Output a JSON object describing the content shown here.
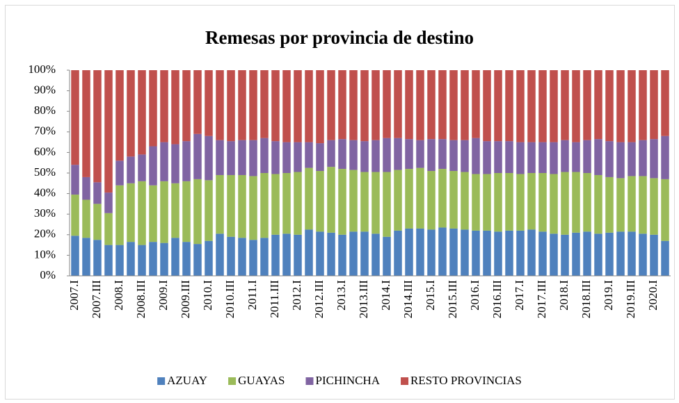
{
  "chart_data": {
    "type": "stacked_bar_100",
    "title": "Remesas por provincia de destino",
    "categories": [
      "2007.I",
      null,
      "2007.III",
      null,
      "2008.I",
      null,
      "2008.III",
      null,
      "2009.I",
      null,
      "2009.III",
      null,
      "2010.I",
      null,
      "2010.III",
      null,
      "2011.I",
      null,
      "2011.III",
      null,
      "2012.I",
      null,
      "2012.III",
      null,
      "2013.I",
      null,
      "2013.III",
      null,
      "2014.I",
      null,
      "2014.III",
      null,
      "2015.I",
      null,
      "2015.III",
      null,
      "2016.I",
      null,
      "2016.III",
      null,
      "2017.I",
      null,
      "2017.III",
      null,
      "2018.I",
      null,
      "2018.III",
      null,
      "2019.I",
      null,
      "2019.III",
      null,
      "2020.I",
      null
    ],
    "series": [
      {
        "name": "AZUAY",
        "color": "#4f81bd",
        "values": [
          19.5,
          18.5,
          17.5,
          15,
          15,
          16.5,
          15,
          16.5,
          16,
          18.5,
          16.5,
          15.5,
          17,
          20.5,
          19,
          18.5,
          17.5,
          18.5,
          20,
          20.5,
          20,
          22.5,
          21.5,
          21,
          20,
          21.5,
          21.5,
          20.5,
          19,
          22,
          23,
          23,
          22.5,
          23.5,
          23,
          22.5,
          22,
          22,
          21.5,
          22,
          22,
          22.5,
          21.5,
          20.5,
          20,
          21,
          21.5,
          20.5,
          21,
          21.5,
          21.5,
          20.5,
          20,
          17
        ]
      },
      {
        "name": "GUAYAS",
        "color": "#9bbb59",
        "values": [
          20,
          18.5,
          17.5,
          15.5,
          29,
          28.5,
          31,
          27.5,
          30,
          26.5,
          29.5,
          31.5,
          29.5,
          28.5,
          30,
          30.5,
          31,
          31.5,
          29.5,
          29.5,
          30.5,
          30,
          29.5,
          32,
          32,
          30,
          29,
          30,
          31.5,
          29.5,
          29,
          29.5,
          28.5,
          28.5,
          28,
          28,
          27.5,
          27.5,
          28.5,
          28,
          27.5,
          27.5,
          28.5,
          29,
          30.5,
          29.5,
          28.5,
          28.5,
          27,
          26,
          27,
          28,
          27.5,
          30
        ]
      },
      {
        "name": "PICHINCHA",
        "color": "#8064a2",
        "values": [
          14.5,
          11,
          10.5,
          10,
          12,
          13,
          13,
          19,
          19,
          19,
          19.5,
          22,
          21.5,
          17,
          16.5,
          17,
          17.5,
          17,
          16,
          15,
          14.5,
          12.5,
          13.5,
          13,
          14.5,
          14.5,
          15,
          15.5,
          16.5,
          15.5,
          14.5,
          13.5,
          15.5,
          14.5,
          15,
          15.5,
          17.5,
          16,
          15.5,
          15.5,
          15.5,
          15,
          15,
          15.5,
          15.5,
          14.5,
          16,
          17.5,
          17.5,
          17.5,
          16.5,
          17.5,
          19,
          21
        ]
      },
      {
        "name": "RESTO PROVINCIAS",
        "color": "#c0504d",
        "values": [
          46,
          52,
          54.5,
          59.5,
          44,
          42,
          41,
          37,
          35,
          36,
          34.5,
          31,
          32,
          34,
          34.5,
          34,
          34,
          33,
          34.5,
          35,
          35,
          35,
          35.5,
          34,
          33.5,
          34,
          34.5,
          34,
          33,
          33,
          33.5,
          34,
          33.5,
          33.5,
          34,
          34,
          33,
          34.5,
          34.5,
          34.5,
          35,
          35,
          35,
          35,
          34,
          35,
          34,
          33.5,
          34.5,
          35,
          35,
          34,
          33.5,
          32
        ]
      }
    ],
    "ylim": [
      0,
      100
    ],
    "yticks": [
      {
        "value": 0,
        "label": "0%"
      },
      {
        "value": 10,
        "label": "10%"
      },
      {
        "value": 20,
        "label": "20%"
      },
      {
        "value": 30,
        "label": "30%"
      },
      {
        "value": 40,
        "label": "40%"
      },
      {
        "value": 50,
        "label": "50%"
      },
      {
        "value": 60,
        "label": "60%"
      },
      {
        "value": 70,
        "label": "70%"
      },
      {
        "value": 80,
        "label": "80%"
      },
      {
        "value": 90,
        "label": "90%"
      },
      {
        "value": 100,
        "label": "100%"
      }
    ],
    "grid": false,
    "legend": "bottom"
  }
}
